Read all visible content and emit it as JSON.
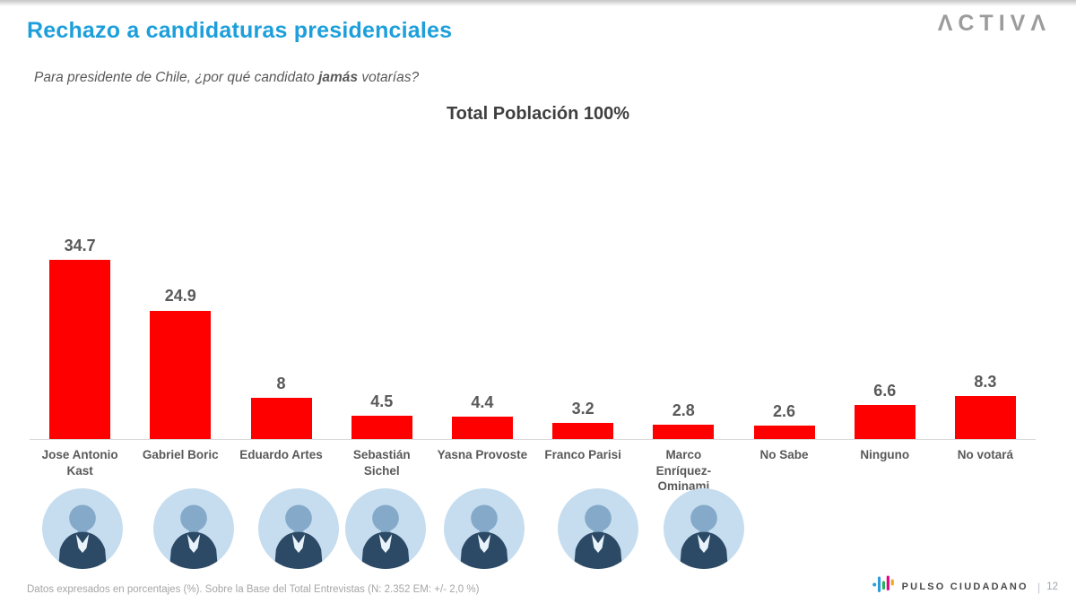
{
  "header": {
    "title": "Rechazo a candidaturas presidenciales",
    "logo_text": "ΛCTIVΛ",
    "question": {
      "prefix": "Para presidente de Chile, ¿por qué candidato ",
      "emphasis": "jamás",
      "suffix": " votarías?"
    }
  },
  "chart_data": {
    "type": "bar",
    "title": "Total Población 100%",
    "categories": [
      "Jose Antonio Kast",
      "Gabriel Boric",
      "Eduardo Artes",
      "Sebastián Sichel",
      "Yasna Provoste",
      "Franco Parisi",
      "Marco Enríquez-Ominami",
      "No Sabe",
      "Ninguno",
      "No votará"
    ],
    "values": [
      34.7,
      24.9,
      8,
      4.5,
      4.4,
      3.2,
      2.8,
      2.6,
      6.6,
      8.3
    ],
    "value_labels": [
      "34.7",
      "24.9",
      "8",
      "4.5",
      "4.4",
      "3.2",
      "2.8",
      "2.6",
      "6.6",
      "8.3"
    ],
    "bar_color": "#FF0000",
    "xlabel": "",
    "ylabel": "",
    "ylim": [
      0,
      38
    ],
    "grid": false,
    "legend": false,
    "photo_candidates": [
      "Jose Antonio Kast",
      "Gabriel Boric",
      "Eduardo Artes",
      "Sebastián Sichel",
      "Yasna Provoste",
      "Franco Parisi",
      "Marco Enríquez-Ominami"
    ]
  },
  "footer": {
    "note": "Datos expresados en porcentajes (%). Sobre la Base del Total Entrevistas (N: 2.352  EM: +/- 2,0 %)",
    "brand": "PULSO CIUDADANO",
    "divider": "|",
    "page_number": "12"
  },
  "colors": {
    "title_accent": "#1D9FDB",
    "bar_red": "#FF0000",
    "label_dark": "#595959",
    "chart_title_gray": "#3F3F3F",
    "footnote_gray": "#A6A6A6",
    "activa_gray": "#9C9C9C",
    "axis_gray": "#D9D9D9",
    "photo_tint": "#C6DDEF",
    "photo_face": "#84A9C9",
    "photo_suit": "#2C4A66",
    "pulso_blue": "#2D9CDB",
    "pulso_green": "#27AE60",
    "pulso_magenta": "#E6007E",
    "pulso_orange": "#F5A623"
  }
}
